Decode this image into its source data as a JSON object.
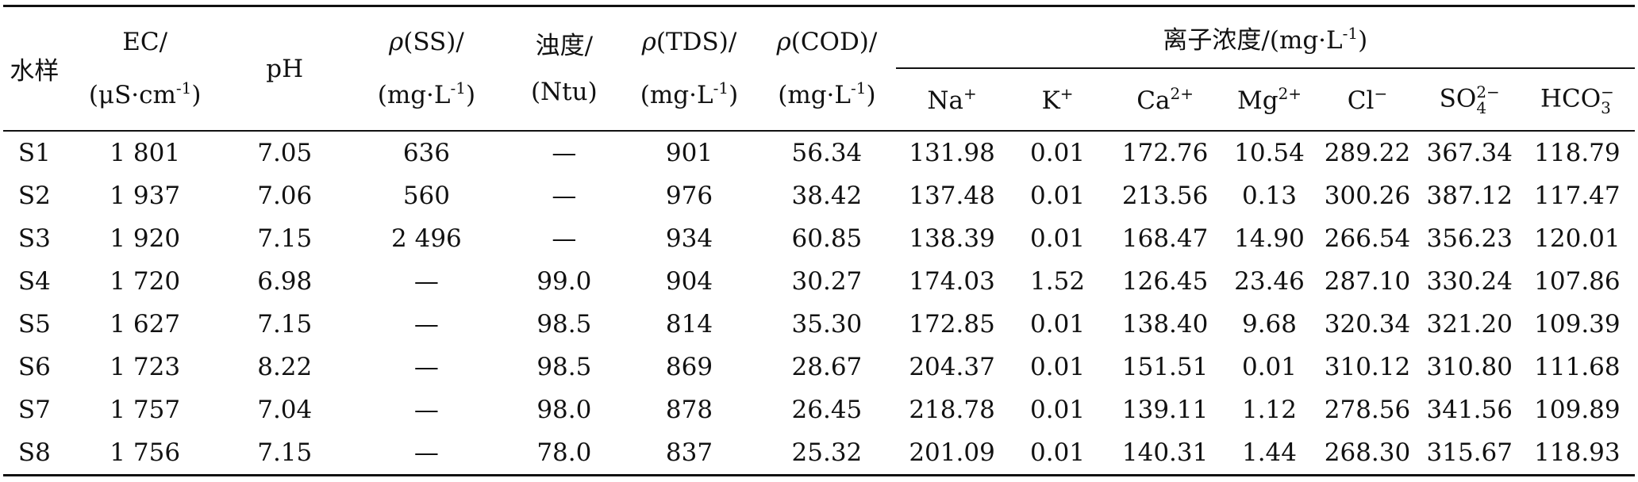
{
  "table": {
    "headers": {
      "sample": "水样",
      "ec": {
        "line1": "EC/",
        "line2": "(μS·cm",
        "exp": "-1",
        "close": ")"
      },
      "ph": "pH",
      "ss": {
        "rho": "ρ",
        "line1": "(SS)/",
        "line2": "(mg·L",
        "exp": "-1",
        "close": ")"
      },
      "turbidity": {
        "line1": "浊度/",
        "line2": "(Ntu)"
      },
      "tds": {
        "rho": "ρ",
        "line1": "(TDS)/",
        "line2": "(mg·L",
        "exp": "-1",
        "close": ")"
      },
      "cod": {
        "rho": "ρ",
        "line1": "(COD)/",
        "line2": "(mg·L",
        "exp": "-1",
        "close": ")"
      },
      "ions_group": {
        "label": "离子浓度/(mg·L",
        "exp": "-1",
        "close": ")"
      },
      "ions": {
        "na": {
          "base": "Na",
          "sup": "+"
        },
        "k": {
          "base": "K",
          "sup": "+"
        },
        "ca": {
          "base": "Ca",
          "sup": "2+"
        },
        "mg": {
          "base": "Mg",
          "sup": "2+"
        },
        "cl": {
          "base": "Cl",
          "sup": "−"
        },
        "so4": {
          "base": "SO",
          "sup": "2−",
          "sub": "4"
        },
        "hco3": {
          "base": "HCO",
          "sup": "−",
          "sub": "3"
        }
      }
    },
    "rows": [
      {
        "sample": "S1",
        "ec": "1 801",
        "ph": "7.05",
        "ss": "636",
        "turbidity": "—",
        "tds": "901",
        "cod": "56.34",
        "na": "131.98",
        "k": "0.01",
        "ca": "172.76",
        "mg": "10.54",
        "cl": "289.22",
        "so4": "367.34",
        "hco3": "118.79"
      },
      {
        "sample": "S2",
        "ec": "1 937",
        "ph": "7.06",
        "ss": "560",
        "turbidity": "—",
        "tds": "976",
        "cod": "38.42",
        "na": "137.48",
        "k": "0.01",
        "ca": "213.56",
        "mg": "0.13",
        "cl": "300.26",
        "so4": "387.12",
        "hco3": "117.47"
      },
      {
        "sample": "S3",
        "ec": "1 920",
        "ph": "7.15",
        "ss": "2 496",
        "turbidity": "—",
        "tds": "934",
        "cod": "60.85",
        "na": "138.39",
        "k": "0.01",
        "ca": "168.47",
        "mg": "14.90",
        "cl": "266.54",
        "so4": "356.23",
        "hco3": "120.01"
      },
      {
        "sample": "S4",
        "ec": "1 720",
        "ph": "6.98",
        "ss": "—",
        "turbidity": "99.0",
        "tds": "904",
        "cod": "30.27",
        "na": "174.03",
        "k": "1.52",
        "ca": "126.45",
        "mg": "23.46",
        "cl": "287.10",
        "so4": "330.24",
        "hco3": "107.86"
      },
      {
        "sample": "S5",
        "ec": "1 627",
        "ph": "7.15",
        "ss": "—",
        "turbidity": "98.5",
        "tds": "814",
        "cod": "35.30",
        "na": "172.85",
        "k": "0.01",
        "ca": "138.40",
        "mg": "9.68",
        "cl": "320.34",
        "so4": "321.20",
        "hco3": "109.39"
      },
      {
        "sample": "S6",
        "ec": "1 723",
        "ph": "8.22",
        "ss": "—",
        "turbidity": "98.5",
        "tds": "869",
        "cod": "28.67",
        "na": "204.37",
        "k": "0.01",
        "ca": "151.51",
        "mg": "0.01",
        "cl": "310.12",
        "so4": "310.80",
        "hco3": "111.68"
      },
      {
        "sample": "S7",
        "ec": "1 757",
        "ph": "7.04",
        "ss": "—",
        "turbidity": "98.0",
        "tds": "878",
        "cod": "26.45",
        "na": "218.78",
        "k": "0.01",
        "ca": "139.11",
        "mg": "1.12",
        "cl": "278.56",
        "so4": "341.56",
        "hco3": "109.89"
      },
      {
        "sample": "S8",
        "ec": "1 756",
        "ph": "7.15",
        "ss": "—",
        "turbidity": "78.0",
        "tds": "837",
        "cod": "25.32",
        "na": "201.09",
        "k": "0.01",
        "ca": "140.31",
        "mg": "1.44",
        "cl": "268.30",
        "so4": "315.67",
        "hco3": "118.93"
      }
    ]
  }
}
